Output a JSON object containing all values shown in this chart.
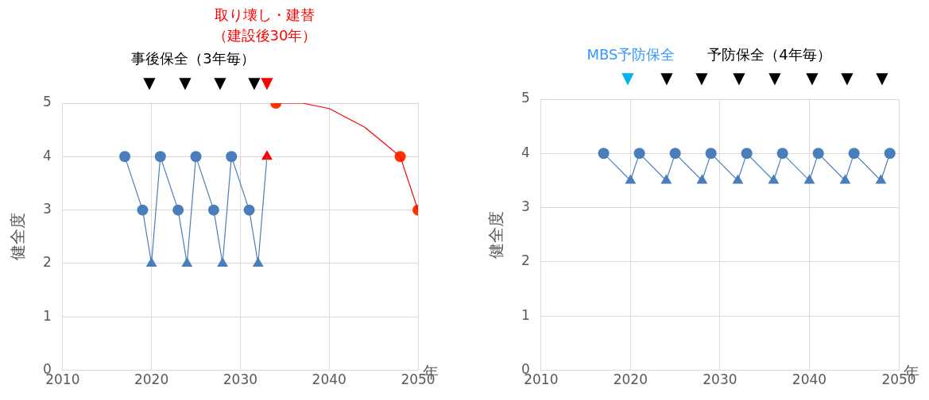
{
  "chart_data": [
    {
      "type": "line",
      "ylabel": "健全度",
      "xlabel": "年",
      "xlim": [
        2010,
        2050
      ],
      "xticks": [
        2010,
        2020,
        2030,
        2040,
        2050
      ],
      "ylim": [
        0,
        5
      ],
      "yticks": [
        0,
        1,
        2,
        3,
        4,
        5
      ],
      "grid": true,
      "legend": false,
      "annotations": [
        "事後保全（3年毎）",
        "取り壊し・建替",
        "（建設後30年）",
        "▼",
        "▼",
        "▼",
        "▼",
        "▼"
      ],
      "series": [
        {
          "type": "line",
          "marker": "none",
          "color": "#4a7ebb",
          "x": [
            2017,
            2019,
            2020,
            2021,
            2023,
            2024,
            2025,
            2027,
            2028,
            2029,
            2031,
            2032,
            2033
          ],
          "values": [
            4,
            3,
            2,
            4,
            3,
            2,
            4,
            3,
            2,
            4,
            3,
            2,
            4
          ]
        },
        {
          "type": "scatter",
          "marker": "circle",
          "color": "#4a7ebb",
          "x": [
            2017,
            2019,
            2021,
            2023,
            2025,
            2027,
            2029,
            2031
          ],
          "values": [
            4,
            3,
            4,
            3,
            4,
            3,
            4,
            3
          ]
        },
        {
          "type": "scatter",
          "marker": "triangle",
          "color": "#4a7ebb",
          "x": [
            2020,
            2024,
            2028,
            2032
          ],
          "values": [
            2,
            2,
            2,
            2
          ]
        },
        {
          "type": "scatter",
          "marker": "triangle",
          "color": "#ff0000",
          "x": [
            2033
          ],
          "values": [
            4
          ]
        },
        {
          "type": "line",
          "marker": "none",
          "color": "#ff0000",
          "x": [
            2034,
            2037,
            2040,
            2044,
            2048,
            2050
          ],
          "values": [
            5,
            5,
            4.9,
            4.55,
            4,
            3
          ]
        },
        {
          "type": "scatter",
          "marker": "circle",
          "color": "#ff3300",
          "x": [
            2034,
            2048,
            2050
          ],
          "values": [
            5,
            4,
            3
          ]
        }
      ]
    },
    {
      "type": "line",
      "ylabel": "健全度",
      "xlabel": "年",
      "xlim": [
        2010,
        2050
      ],
      "xticks": [
        2010,
        2020,
        2030,
        2040,
        2050
      ],
      "ylim": [
        0,
        5
      ],
      "yticks": [
        0,
        1,
        2,
        3,
        4,
        5
      ],
      "grid": true,
      "legend": false,
      "annotations": [
        "MBS予防保全",
        "予防保全（4年毎）",
        "▼",
        "▼",
        "▼",
        "▼",
        "▼",
        "▼",
        "▼",
        "▼"
      ],
      "series": [
        {
          "type": "line",
          "marker": "none",
          "color": "#4a7ebb",
          "x": [
            2017,
            2020,
            2021,
            2024,
            2025,
            2028,
            2029,
            2032,
            2033,
            2036,
            2037,
            2040,
            2041,
            2044,
            2045,
            2048,
            2049
          ],
          "values": [
            4,
            3.5,
            4,
            3.5,
            4,
            3.5,
            4,
            3.5,
            4,
            3.5,
            4,
            3.5,
            4,
            3.5,
            4,
            3.5,
            4
          ]
        },
        {
          "type": "scatter",
          "marker": "circle",
          "color": "#4a7ebb",
          "x": [
            2017,
            2021,
            2025,
            2029,
            2033,
            2037,
            2041,
            2045,
            2049
          ],
          "values": [
            4,
            4,
            4,
            4,
            4,
            4,
            4,
            4,
            4
          ]
        },
        {
          "type": "scatter",
          "marker": "triangle",
          "color": "#4a7ebb",
          "x": [
            2020,
            2024,
            2028,
            2032,
            2036,
            2040,
            2044,
            2048
          ],
          "values": [
            3.5,
            3.5,
            3.5,
            3.5,
            3.5,
            3.5,
            3.5,
            3.5
          ]
        }
      ]
    }
  ]
}
